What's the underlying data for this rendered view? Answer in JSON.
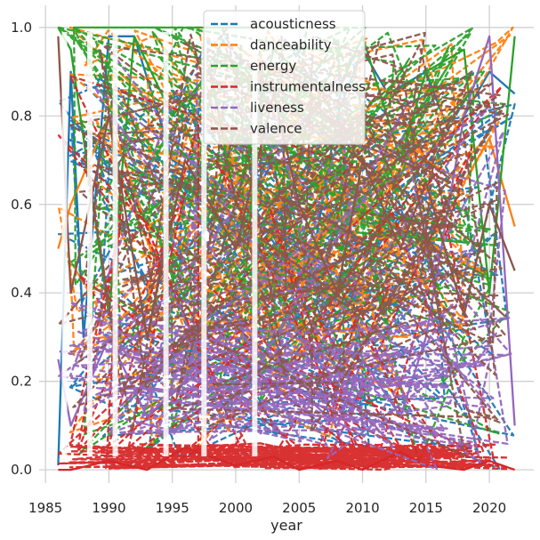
{
  "chart_data": {
    "type": "line",
    "title": "",
    "xlabel": "year",
    "ylabel": "",
    "xlim": [
      1984.5,
      2023.5
    ],
    "ylim": [
      -0.03,
      1.05
    ],
    "xticks": [
      1985,
      1990,
      1995,
      2000,
      2005,
      2010,
      2015,
      2020
    ],
    "yticks": [
      0.0,
      0.2,
      0.4,
      0.6,
      0.8,
      1.0
    ],
    "grid": true,
    "legend_position": "top-center",
    "gap_years": [
      1986.5,
      1988.5,
      1990.5,
      1994.5,
      1997.5,
      2001.5
    ],
    "series": [
      {
        "name": "acousticness",
        "color": "#1f77b4",
        "style": "dashed",
        "typical": 0.45,
        "points": [
          [
            1986,
            0.01
          ],
          [
            1987,
            0.9
          ],
          [
            1988,
            0.3
          ],
          [
            1990,
            0.98
          ],
          [
            1992,
            0.98
          ],
          [
            1995,
            0.7
          ],
          [
            1998,
            0.65
          ],
          [
            2000,
            0.55
          ],
          [
            2003,
            0.7
          ],
          [
            2005,
            0.3
          ],
          [
            2008,
            0.8
          ],
          [
            2010,
            0.95
          ],
          [
            2012,
            0.85
          ],
          [
            2015,
            0.9
          ],
          [
            2017,
            0.75
          ],
          [
            2020,
            0.9
          ],
          [
            2022,
            0.85
          ]
        ]
      },
      {
        "name": "danceability",
        "color": "#ff7f0e",
        "style": "dashed",
        "typical": 0.6,
        "points": [
          [
            1986,
            0.5
          ],
          [
            1987,
            0.6
          ],
          [
            1990,
            0.8
          ],
          [
            1993,
            0.55
          ],
          [
            1996,
            0.6
          ],
          [
            2000,
            0.7
          ],
          [
            2003,
            0.55
          ],
          [
            2005,
            0.4
          ],
          [
            2008,
            0.65
          ],
          [
            2010,
            0.6
          ],
          [
            2013,
            0.8
          ],
          [
            2015,
            0.7
          ],
          [
            2018,
            0.65
          ],
          [
            2020,
            0.75
          ],
          [
            2022,
            0.55
          ]
        ]
      },
      {
        "name": "energy",
        "color": "#2ca02c",
        "style": "dashed",
        "typical": 0.7,
        "points": [
          [
            1986,
            1.0
          ],
          [
            1987,
            0.95
          ],
          [
            1990,
            0.35
          ],
          [
            1992,
            0.98
          ],
          [
            1995,
            0.8
          ],
          [
            1998,
            0.9
          ],
          [
            2000,
            0.6
          ],
          [
            2003,
            0.95
          ],
          [
            2005,
            0.9
          ],
          [
            2008,
            0.85
          ],
          [
            2010,
            0.98
          ],
          [
            2013,
            0.7
          ],
          [
            2015,
            0.9
          ],
          [
            2018,
            0.95
          ],
          [
            2020,
            0.4
          ],
          [
            2022,
            0.98
          ]
        ]
      },
      {
        "name": "instrumentalness",
        "color": "#d62728",
        "style": "dashed",
        "typical": 0.05,
        "points": [
          [
            1986,
            0.0
          ],
          [
            1987,
            0.0
          ],
          [
            1990,
            0.02
          ],
          [
            1993,
            0.0
          ],
          [
            1996,
            0.05
          ],
          [
            2000,
            0.01
          ],
          [
            2003,
            0.03
          ],
          [
            2005,
            0.0
          ],
          [
            2008,
            0.02
          ],
          [
            2010,
            0.0
          ],
          [
            2013,
            0.04
          ],
          [
            2015,
            0.01
          ],
          [
            2018,
            0.0
          ],
          [
            2020,
            0.02
          ],
          [
            2022,
            0.0
          ]
        ]
      },
      {
        "name": "liveness",
        "color": "#9467bd",
        "style": "dashed",
        "typical": 0.18,
        "points": [
          [
            1986,
            0.25
          ],
          [
            1987,
            0.1
          ],
          [
            1990,
            0.3
          ],
          [
            1993,
            0.12
          ],
          [
            1996,
            0.2
          ],
          [
            2000,
            0.35
          ],
          [
            2003,
            0.15
          ],
          [
            2005,
            0.18
          ],
          [
            2008,
            0.1
          ],
          [
            2010,
            0.25
          ],
          [
            2013,
            0.12
          ],
          [
            2015,
            0.3
          ],
          [
            2018,
            0.8
          ],
          [
            2020,
            0.98
          ],
          [
            2022,
            0.1
          ]
        ]
      },
      {
        "name": "valence",
        "color": "#8c564b",
        "style": "dashed",
        "typical": 0.55,
        "points": [
          [
            1986,
            0.98
          ],
          [
            1987,
            0.4
          ],
          [
            1990,
            0.8
          ],
          [
            1993,
            0.3
          ],
          [
            1996,
            0.7
          ],
          [
            2000,
            0.5
          ],
          [
            2003,
            0.85
          ],
          [
            2005,
            0.6
          ],
          [
            2008,
            0.4
          ],
          [
            2010,
            0.7
          ],
          [
            2013,
            0.5
          ],
          [
            2015,
            0.65
          ],
          [
            2018,
            0.35
          ],
          [
            2020,
            0.6
          ],
          [
            2022,
            0.45
          ]
        ]
      }
    ]
  }
}
